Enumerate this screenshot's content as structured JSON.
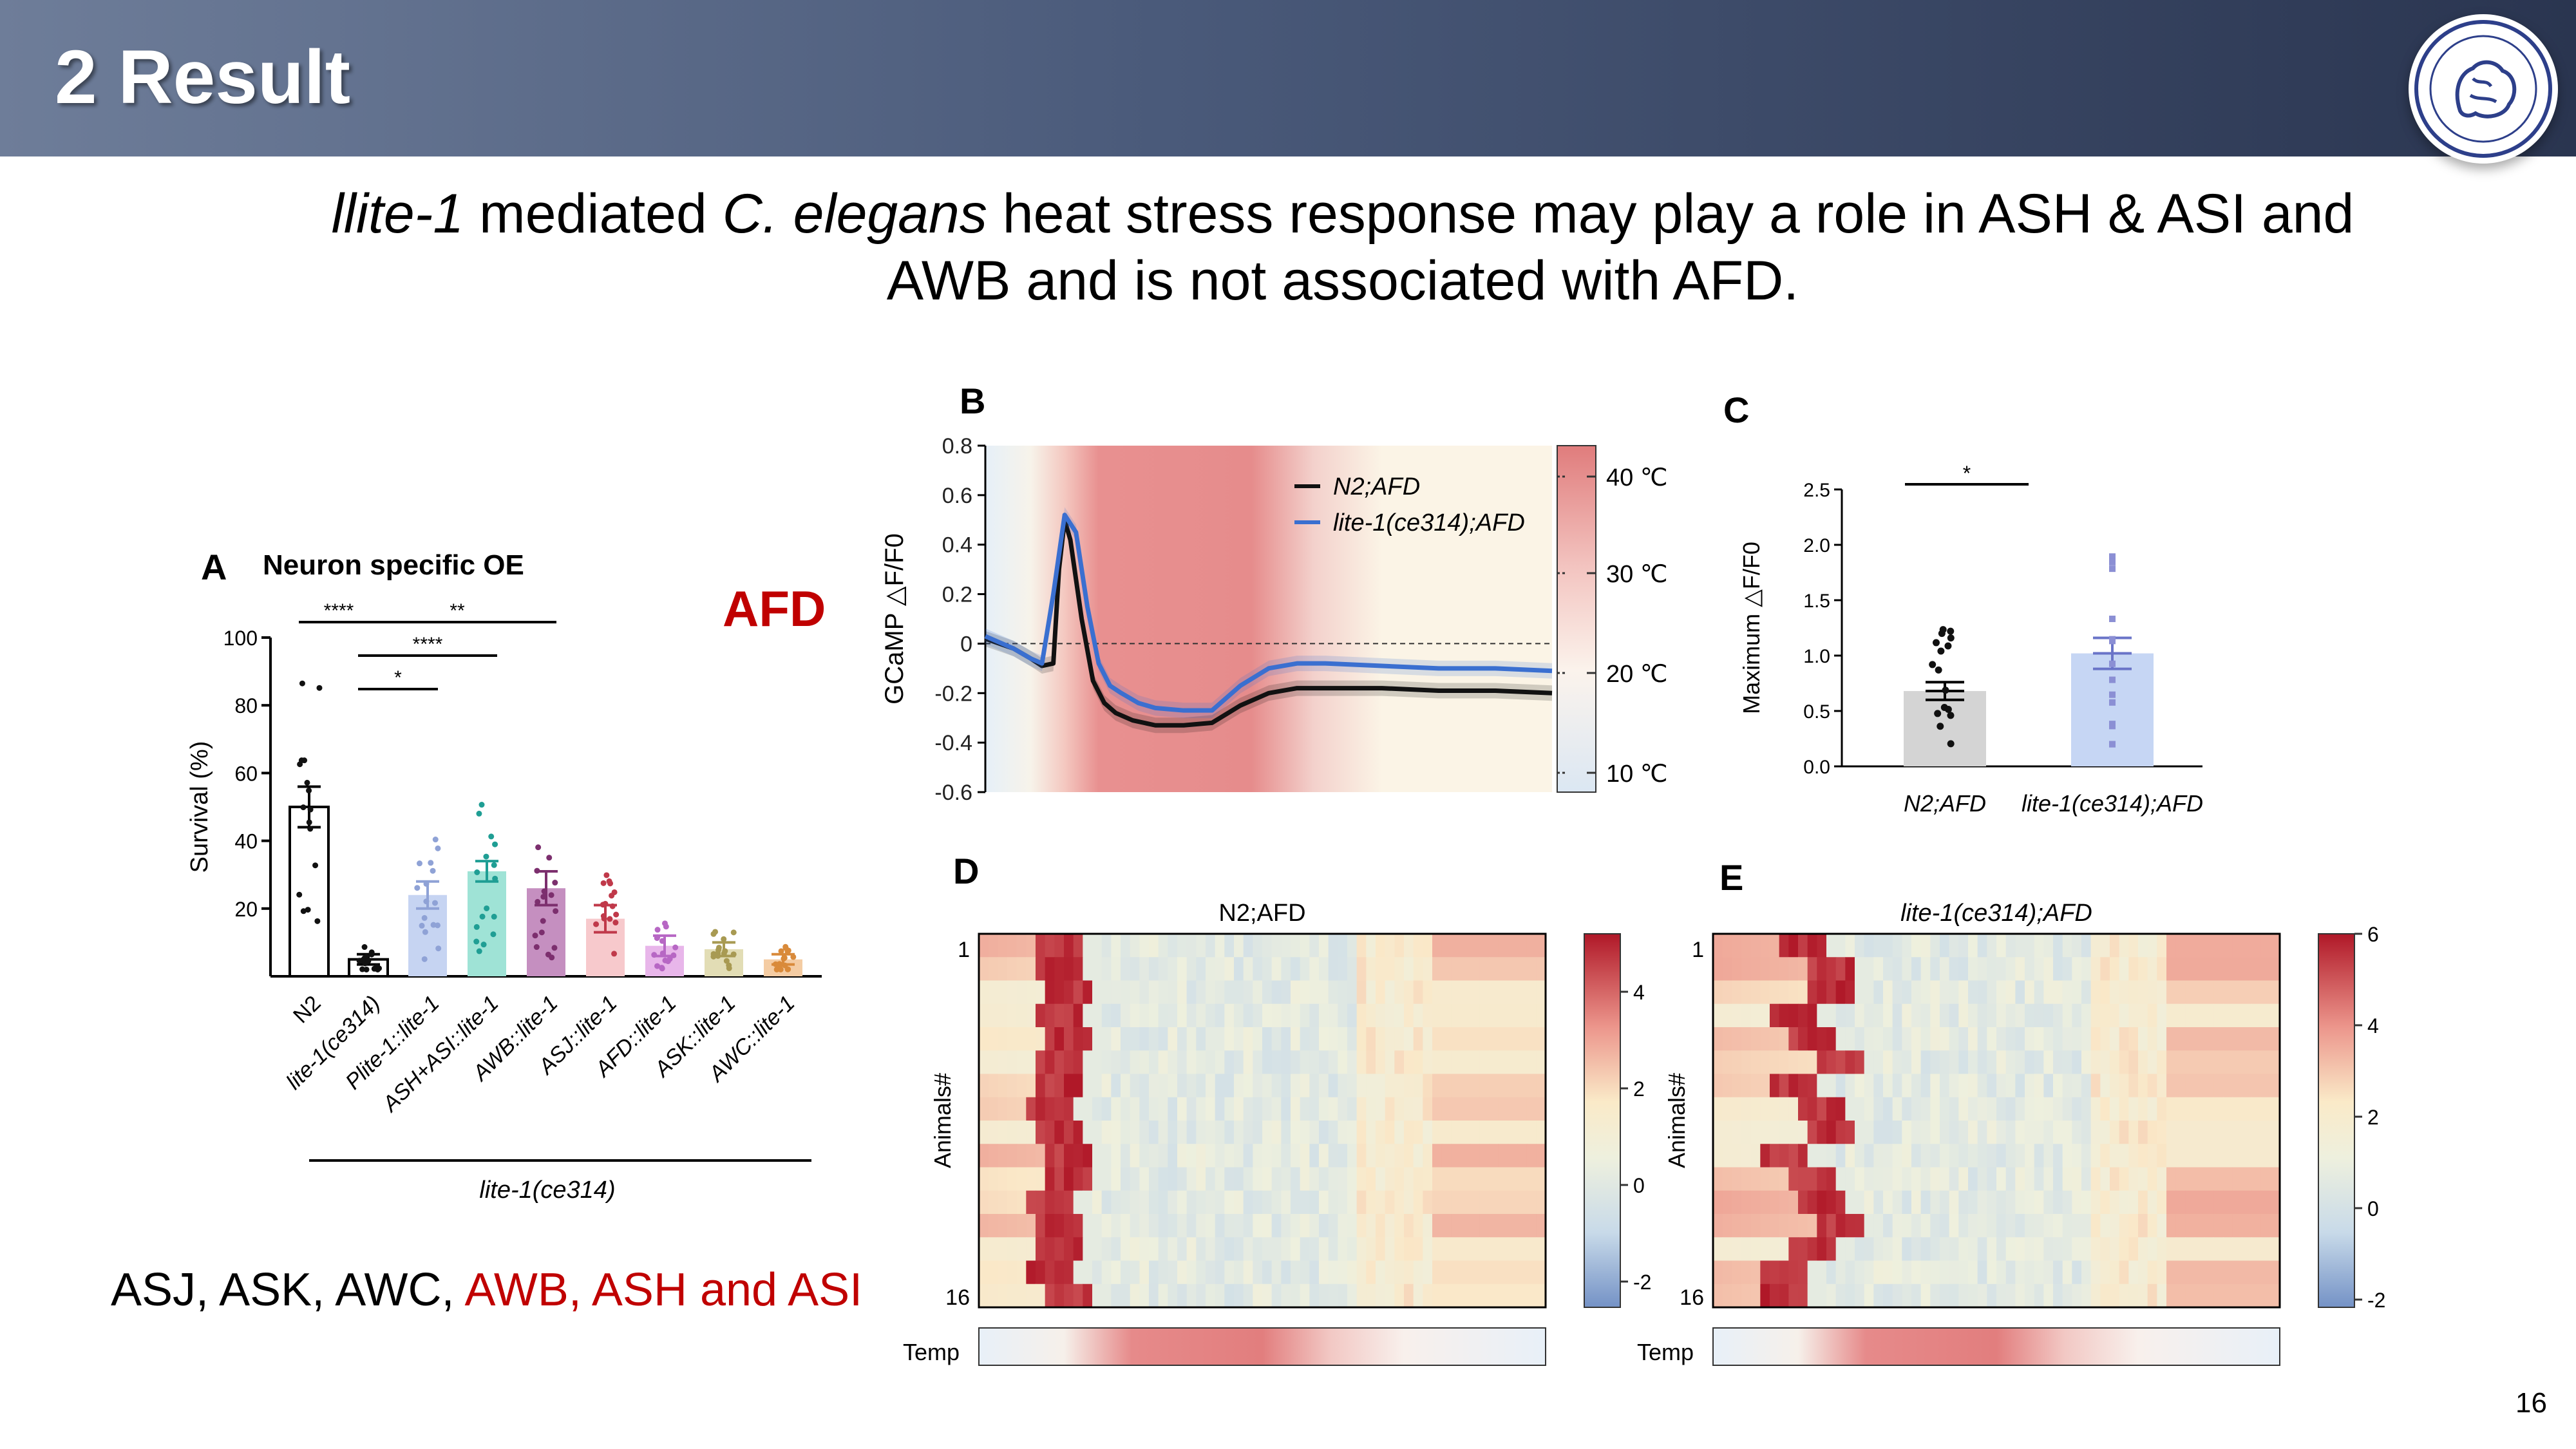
{
  "slide": {
    "title": "2 Result",
    "heading_line1_italic": "llite-1",
    "heading_line1_mid": " mediated ",
    "heading_line1_species": "C. elegans",
    "heading_line1_end": " heat stress response may play a role in ASH & ASI and",
    "heading_line2": "AWB and is not associated with AFD.",
    "afd_label": "AFD",
    "footer_black": "ASJ, ASK, AWC, ",
    "footer_red": "AWB, ASH and ASI",
    "page_number": "16"
  },
  "panels": {
    "A": "A",
    "B": "B",
    "C": "C",
    "D": "D",
    "E": "E"
  },
  "chart_data": [
    {
      "type": "bar",
      "panel": "A",
      "title": "Neuron specific OE",
      "ylabel": "Survival (%)",
      "ylim": [
        0,
        100
      ],
      "yticks": [
        "20",
        "40",
        "60",
        "80",
        "100"
      ],
      "categories": [
        "N2",
        "lite-1(ce314)",
        "Plite-1::lite-1",
        "ASH+ASI::lite-1",
        "AWB::lite-1",
        "ASJ::lite-1",
        "AFD::lite-1",
        "ASK::lite-1",
        "AWC::lite-1"
      ],
      "values": [
        50,
        5,
        24,
        31,
        26,
        17,
        9,
        8,
        5
      ],
      "errors": [
        6,
        1.5,
        4,
        3,
        5,
        4,
        3,
        2,
        1.5
      ],
      "colors": [
        "#ffffff",
        "#ffffff",
        "#c6d4f2",
        "#9fe3d6",
        "#c58fc0",
        "#f7c9cc",
        "#e8b6ea",
        "#e2ddb5",
        "#f4cca3"
      ],
      "dot_colors": [
        "#111111",
        "#111111",
        "#8fa2d6",
        "#1f9e94",
        "#7c2f6e",
        "#c0394a",
        "#b767c4",
        "#a89a52",
        "#d98a3a"
      ],
      "group_label": "lite-1(ce314)",
      "significance": [
        "****",
        "**",
        "****",
        "*"
      ]
    },
    {
      "type": "line",
      "panel": "B",
      "ylabel": "GCaMP △F/F0",
      "ylim": [
        -0.6,
        0.8
      ],
      "yticks": [
        "0.8",
        "0.6",
        "0.4",
        "0.2",
        "0",
        "-0.2",
        "-0.4",
        "-0.6"
      ],
      "temp_ticks": [
        "40 ℃",
        "30 ℃",
        "20 ℃",
        "10 ℃"
      ],
      "series": [
        {
          "name": "N2;AFD",
          "color": "#111111",
          "x": [
            0,
            5,
            8,
            10,
            12,
            13,
            14,
            15,
            17,
            19,
            21,
            23,
            26,
            30,
            35,
            40,
            45,
            50,
            55,
            60,
            70,
            80,
            90,
            100
          ],
          "y": [
            0.02,
            -0.02,
            -0.06,
            -0.09,
            -0.08,
            0.3,
            0.5,
            0.42,
            0.1,
            -0.15,
            -0.24,
            -0.28,
            -0.31,
            -0.33,
            -0.33,
            -0.32,
            -0.25,
            -0.2,
            -0.18,
            -0.18,
            -0.18,
            -0.19,
            -0.19,
            -0.2
          ]
        },
        {
          "name": "lite-1(ce314);AFD",
          "color": "#3a6fd0",
          "x": [
            0,
            5,
            8,
            10,
            12,
            14,
            16,
            18,
            20,
            22,
            24,
            27,
            30,
            35,
            40,
            45,
            50,
            55,
            60,
            70,
            80,
            90,
            100
          ],
          "y": [
            0.03,
            -0.02,
            -0.06,
            -0.08,
            0.2,
            0.52,
            0.45,
            0.15,
            -0.08,
            -0.17,
            -0.2,
            -0.24,
            -0.26,
            -0.27,
            -0.27,
            -0.17,
            -0.1,
            -0.08,
            -0.08,
            -0.09,
            -0.1,
            -0.1,
            -0.11
          ]
        }
      ]
    },
    {
      "type": "bar",
      "panel": "C",
      "ylabel": "Maximum △F/F0",
      "ylim": [
        0,
        2.5
      ],
      "yticks": [
        "0.0",
        "0.5",
        "1.0",
        "1.5",
        "2.0",
        "2.5"
      ],
      "categories": [
        "N2;AFD",
        "lite-1(ce314);AFD"
      ],
      "values": [
        0.68,
        1.02
      ],
      "errors": [
        0.08,
        0.14
      ],
      "colors": [
        "#d4d4d4",
        "#c6d6f4"
      ],
      "significance": "*"
    },
    {
      "type": "heatmap",
      "panel": "D",
      "title": "N2;AFD",
      "ylabel": "Animals#",
      "row_ticks": [
        "1",
        "16"
      ],
      "colorbar_ticks": [
        "4",
        "2",
        "0",
        "-2"
      ],
      "bottom_label": "Temp"
    },
    {
      "type": "heatmap",
      "panel": "E",
      "title": "lite-1(ce314);AFD",
      "ylabel": "Animals#",
      "row_ticks": [
        "1",
        "16"
      ],
      "colorbar_ticks": [
        "6",
        "4",
        "2",
        "0",
        "-2"
      ],
      "bottom_label": "Temp"
    }
  ]
}
